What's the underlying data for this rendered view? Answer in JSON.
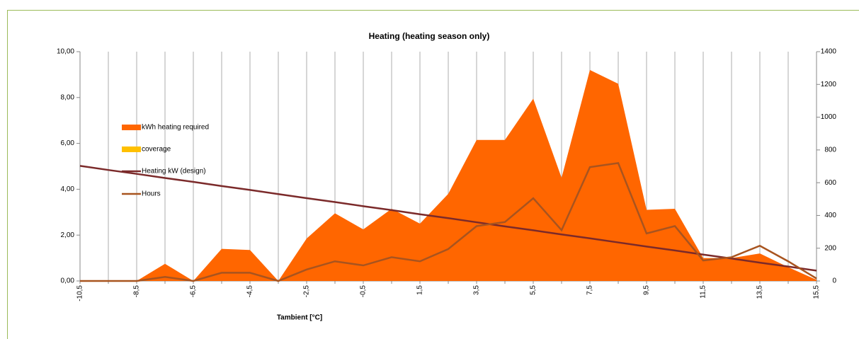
{
  "chart_data": {
    "type": "combo",
    "title": "Heating (heating season only)",
    "x_label": "Tambient [°C]",
    "categories": [
      "-10,5",
      null,
      "-8,5",
      null,
      "-6,5",
      null,
      "-4,5",
      null,
      "-2,5",
      null,
      "-0,5",
      null,
      "1,5",
      null,
      "3,5",
      null,
      "5,5",
      null,
      "7,5",
      null,
      "9,5",
      null,
      "11,5",
      null,
      "13,5",
      null,
      "15,5"
    ],
    "series": [
      {
        "name": "kWh heating required",
        "kind": "area",
        "color": "#ff6600",
        "values": [
          0,
          0,
          0,
          0.75,
          0,
          1.4,
          1.35,
          0,
          1.85,
          2.95,
          2.25,
          3.15,
          2.5,
          3.8,
          6.15,
          6.15,
          7.95,
          4.5,
          9.2,
          8.6,
          3.1,
          3.15,
          1.0,
          1.0,
          1.2,
          0.6,
          0.05
        ]
      },
      {
        "name": "coverage",
        "kind": "area",
        "color": "#ffc000",
        "values": [
          0,
          0,
          0,
          0,
          0,
          0,
          0,
          0,
          0,
          0,
          0,
          0,
          0,
          0,
          0,
          0,
          0,
          0,
          0,
          0,
          0,
          0,
          0,
          0,
          0,
          0,
          0
        ]
      },
      {
        "name": "Heating kW (design)",
        "kind": "line",
        "color": "#7b2a2a",
        "values": [
          5.02,
          4.84,
          4.67,
          4.49,
          4.32,
          4.14,
          3.97,
          3.79,
          3.61,
          3.44,
          3.26,
          3.09,
          2.91,
          2.74,
          2.56,
          2.38,
          2.21,
          2.03,
          1.86,
          1.68,
          1.5,
          1.33,
          1.15,
          0.98,
          0.8,
          0.63,
          0.45
        ]
      },
      {
        "name": "Hours",
        "kind": "line",
        "axis": "y2",
        "color": "#a8541f",
        "values": [
          0,
          0,
          0,
          25,
          0,
          50,
          50,
          0,
          70,
          120,
          95,
          145,
          120,
          195,
          335,
          360,
          505,
          310,
          695,
          720,
          290,
          335,
          125,
          145,
          215,
          120,
          15
        ]
      }
    ],
    "ylim": [
      0,
      10
    ],
    "yticks": [
      {
        "value": 0,
        "label": "0,00"
      },
      {
        "value": 2,
        "label": "2,00"
      },
      {
        "value": 4,
        "label": "4,00"
      },
      {
        "value": 6,
        "label": "6,00"
      },
      {
        "value": 8,
        "label": "8,00"
      },
      {
        "value": 10,
        "label": "10,00"
      }
    ],
    "y2lim": [
      0,
      1400
    ],
    "y2ticks": [
      0,
      200,
      400,
      600,
      800,
      1000,
      1200,
      1400
    ],
    "grid": "x",
    "legend": "left"
  }
}
